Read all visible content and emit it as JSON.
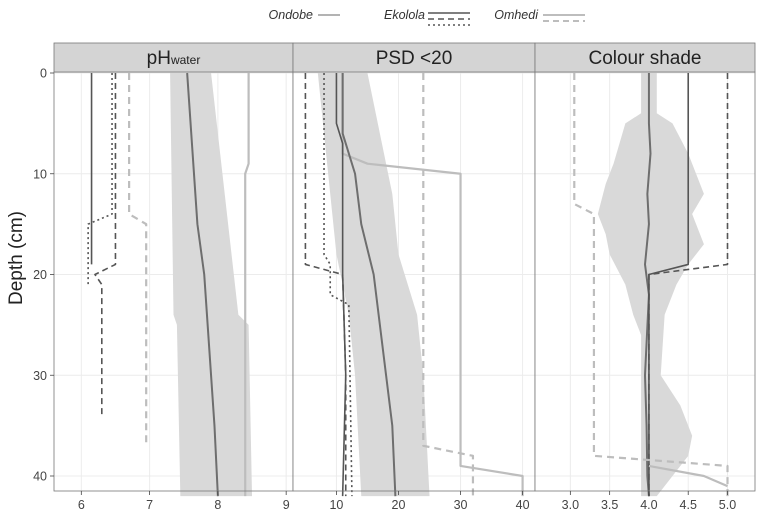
{
  "chart_data": {
    "type": "line",
    "ylabel": "Depth (cm)",
    "y_reversed": true,
    "ylim": [
      0,
      42
    ],
    "y_ticks": [
      0,
      10,
      20,
      30,
      40
    ],
    "legend": {
      "placement": "top",
      "entries": [
        {
          "label": "Ondobe",
          "style": "solid"
        },
        {
          "label": "Ekolola",
          "style": "solid-dashed-dotted"
        },
        {
          "label": "Omhedi",
          "style": "light"
        }
      ]
    },
    "grid": true,
    "colors": {
      "panel_strip": "#d4d4d4",
      "band": "#d9d9d9",
      "dark": "#555555",
      "light": "#bdbdbd",
      "grid": "#ececec"
    },
    "panels": [
      {
        "title_main": "pH",
        "title_sub": "water",
        "xlim": [
          5.6,
          9.1
        ],
        "x_ticks": [
          6,
          7,
          8,
          9
        ],
        "band": {
          "depth": [
            0,
            24,
            25,
            42
          ],
          "lower": [
            7.3,
            7.35,
            7.4,
            7.45
          ],
          "upper": [
            7.9,
            8.3,
            8.45,
            8.5
          ]
        },
        "series": [
          {
            "group": "Omhedi",
            "style": "light",
            "points": [
              [
                8.45,
                0
              ],
              [
                8.45,
                9
              ],
              [
                8.4,
                10
              ],
              [
                8.4,
                42
              ]
            ]
          },
          {
            "group": "Ondobe",
            "style": "mid",
            "points": [
              [
                7.55,
                0
              ],
              [
                7.6,
                5
              ],
              [
                7.65,
                10
              ],
              [
                7.7,
                15
              ],
              [
                7.8,
                20
              ],
              [
                7.85,
                25
              ],
              [
                7.9,
                30
              ],
              [
                7.95,
                35
              ],
              [
                8.0,
                42
              ]
            ]
          },
          {
            "group": "Ekolola",
            "style": "solid",
            "points": [
              [
                6.15,
                0
              ],
              [
                6.15,
                19
              ]
            ]
          },
          {
            "group": "Ekolola",
            "style": "dashed",
            "points": [
              [
                6.5,
                0
              ],
              [
                6.5,
                19
              ],
              [
                6.2,
                20
              ],
              [
                6.3,
                21
              ],
              [
                6.3,
                34
              ]
            ]
          },
          {
            "group": "Ekolola",
            "style": "dotted",
            "points": [
              [
                6.45,
                0
              ],
              [
                6.45,
                14
              ],
              [
                6.1,
                15
              ],
              [
                6.1,
                21
              ]
            ]
          },
          {
            "group": "Omhedi",
            "style": "light-dashed",
            "points": [
              [
                6.7,
                0
              ],
              [
                6.7,
                14
              ],
              [
                6.95,
                15
              ],
              [
                6.95,
                37
              ]
            ]
          }
        ]
      },
      {
        "title_main": "PSD <20",
        "title_sub": "",
        "xlim": [
          3,
          42
        ],
        "x_ticks": [
          10,
          20,
          30,
          40
        ],
        "band": {
          "depth": [
            0,
            6,
            12,
            18,
            24,
            30,
            42
          ],
          "lower": [
            7,
            8,
            9,
            10,
            12,
            13,
            14
          ],
          "upper": [
            15,
            17,
            19,
            20,
            23,
            24,
            25
          ]
        },
        "series": [
          {
            "group": "Ondobe",
            "style": "light",
            "points": [
              [
                11,
                0
              ],
              [
                11,
                8
              ],
              [
                15,
                9
              ],
              [
                30,
                10
              ],
              [
                30,
                39
              ],
              [
                40,
                40
              ],
              [
                40,
                42
              ]
            ]
          },
          {
            "group": "Ondobe",
            "style": "mid",
            "points": [
              [
                11,
                0
              ],
              [
                11,
                6
              ],
              [
                13,
                10
              ],
              [
                14,
                15
              ],
              [
                16,
                20
              ],
              [
                17,
                25
              ],
              [
                18,
                30
              ],
              [
                19,
                35
              ],
              [
                19.5,
                42
              ]
            ]
          },
          {
            "group": "Ekolola",
            "style": "solid",
            "points": [
              [
                10,
                0
              ],
              [
                10,
                5
              ],
              [
                11,
                7
              ],
              [
                11,
                20
              ],
              [
                11.5,
                30
              ],
              [
                11,
                42
              ]
            ]
          },
          {
            "group": "Ekolola",
            "style": "dashed",
            "points": [
              [
                5,
                0
              ],
              [
                5,
                19
              ],
              [
                11,
                20
              ],
              [
                11.5,
                30
              ],
              [
                11.5,
                42
              ]
            ]
          },
          {
            "group": "Ekolola",
            "style": "dotted",
            "points": [
              [
                8,
                0
              ],
              [
                8,
                18
              ],
              [
                9,
                19
              ],
              [
                9,
                22
              ],
              [
                12,
                23
              ],
              [
                12.5,
                42
              ]
            ]
          },
          {
            "group": "Omhedi",
            "style": "light-dashed",
            "points": [
              [
                24,
                0
              ],
              [
                24,
                37
              ],
              [
                32,
                38
              ],
              [
                32,
                42
              ]
            ]
          }
        ]
      },
      {
        "title_main": "Colour shade",
        "title_sub": "",
        "xlim": [
          2.55,
          5.35
        ],
        "x_ticks": [
          3.0,
          3.5,
          4.0,
          4.5,
          5.0
        ],
        "x_tick_labels": [
          "3.0",
          "3.5",
          "4.0",
          "4.5",
          "5.0"
        ],
        "band": {
          "lower": [
            [
              3.9,
              0
            ],
            [
              3.9,
              4
            ],
            [
              3.7,
              5
            ],
            [
              3.55,
              9
            ],
            [
              3.45,
              11
            ],
            [
              3.35,
              14
            ],
            [
              3.45,
              16
            ],
            [
              3.5,
              18
            ],
            [
              3.7,
              21
            ],
            [
              3.8,
              24
            ],
            [
              3.9,
              26
            ],
            [
              3.9,
              42
            ]
          ],
          "upper": [
            [
              4.1,
              0
            ],
            [
              4.1,
              4
            ],
            [
              4.3,
              5
            ],
            [
              4.5,
              8
            ],
            [
              4.7,
              12
            ],
            [
              4.55,
              14
            ],
            [
              4.7,
              17
            ],
            [
              4.5,
              19
            ],
            [
              4.35,
              21
            ],
            [
              4.2,
              24
            ],
            [
              4.15,
              30
            ],
            [
              4.4,
              33
            ],
            [
              4.55,
              36
            ],
            [
              4.5,
              38
            ],
            [
              4.1,
              42
            ]
          ]
        },
        "series": [
          {
            "group": "Ondobe",
            "style": "mid",
            "points": [
              [
                4.0,
                0
              ],
              [
                4.0,
                5
              ],
              [
                4.02,
                8
              ],
              [
                3.98,
                12
              ],
              [
                4.0,
                15
              ],
              [
                3.95,
                19
              ],
              [
                4.0,
                22
              ],
              [
                3.95,
                30
              ],
              [
                3.97,
                35
              ],
              [
                3.98,
                40
              ],
              [
                4.0,
                42
              ]
            ]
          },
          {
            "group": "Ekolola",
            "style": "solid",
            "points": [
              [
                4.5,
                0
              ],
              [
                4.5,
                19
              ],
              [
                4.0,
                20
              ],
              [
                4.0,
                42
              ]
            ]
          },
          {
            "group": "Ekolola",
            "style": "dashed",
            "points": [
              [
                5.0,
                0
              ],
              [
                5.0,
                19
              ],
              [
                4.0,
                20
              ],
              [
                4.0,
                42
              ]
            ]
          },
          {
            "group": "Omhedi",
            "style": "light-dashed",
            "points": [
              [
                3.05,
                0
              ],
              [
                3.05,
                13
              ],
              [
                3.3,
                14
              ],
              [
                3.3,
                38
              ],
              [
                5.0,
                39
              ],
              [
                5.0,
                42
              ]
            ]
          },
          {
            "group": "Omhedi",
            "style": "light",
            "points": [
              [
                4.0,
                39
              ],
              [
                4.7,
                40
              ],
              [
                5.0,
                41
              ]
            ]
          }
        ]
      }
    ]
  }
}
